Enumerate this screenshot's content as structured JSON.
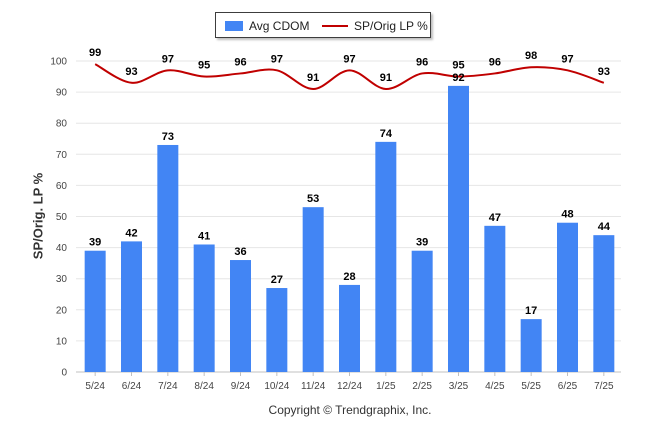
{
  "chart_data": {
    "type": "bar",
    "categories": [
      "5/24",
      "6/24",
      "7/24",
      "8/24",
      "9/24",
      "10/24",
      "11/24",
      "12/24",
      "1/25",
      "2/25",
      "3/25",
      "4/25",
      "5/25",
      "6/25",
      "7/25"
    ],
    "series": [
      {
        "name": "Avg CDOM",
        "type": "bar",
        "color": "#4285f4",
        "values": [
          39,
          42,
          73,
          41,
          36,
          27,
          53,
          28,
          74,
          39,
          92,
          47,
          17,
          48,
          44
        ]
      },
      {
        "name": "SP/Orig LP %",
        "type": "line",
        "color": "#c00000",
        "values": [
          99,
          93,
          97,
          95,
          96,
          97,
          91,
          97,
          91,
          96,
          95,
          96,
          98,
          97,
          93
        ]
      }
    ],
    "ylabel": "SP/Orig. LP %",
    "ylim": [
      0,
      100
    ],
    "yticks": [
      0,
      10,
      20,
      30,
      40,
      50,
      60,
      70,
      80,
      90,
      100
    ],
    "grid": true,
    "legend_position": "top-center"
  },
  "legend": {
    "bar_label": "Avg CDOM",
    "line_label": "SP/Orig LP %"
  },
  "footer": {
    "copyright": "Copyright © Trendgraphix, Inc."
  }
}
